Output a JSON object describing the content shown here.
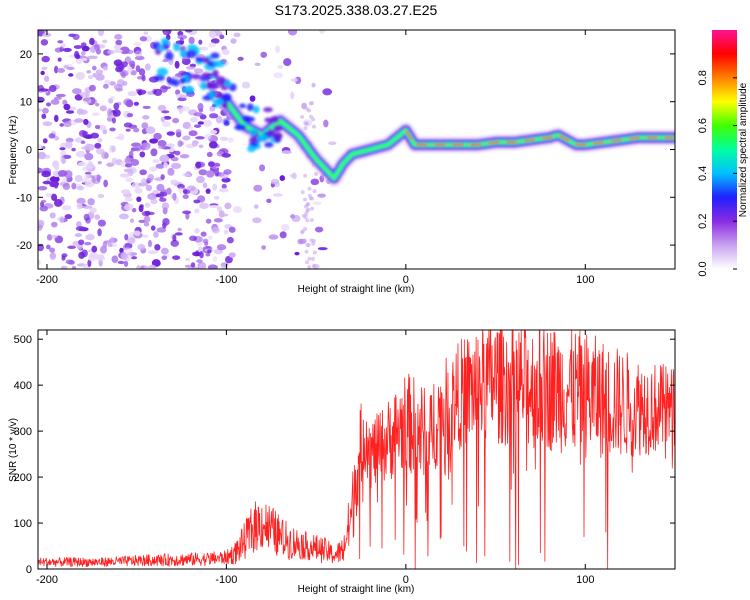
{
  "title": "S173.2025.338.03.27.E25",
  "chart_data": [
    {
      "type": "heatmap",
      "title": "S173.2025.338.03.27.E25",
      "xlabel": "Height of straight line (km)",
      "ylabel": "Frequency (Hz)",
      "xlim": [
        -205,
        150
      ],
      "ylim": [
        -25,
        25
      ],
      "xticks": [
        -200,
        -100,
        0,
        100
      ],
      "yticks": [
        -20,
        -10,
        0,
        10,
        20
      ],
      "colorbar": {
        "label": "Normalized spectral amplitude",
        "range": [
          0,
          1
        ],
        "ticks": [
          "0.0",
          "0.2",
          "0.4",
          "0.6",
          "0.8"
        ],
        "colors": [
          "#ffffff",
          "#c8a2f0",
          "#8a2be2",
          "#2020ff",
          "#00c0ff",
          "#00ffa0",
          "#40ff00",
          "#ffff00",
          "#ff8000",
          "#ff0000",
          "#ff1493"
        ]
      },
      "ridge": {
        "x": [
          -100,
          -90,
          -80,
          -70,
          -60,
          -50,
          -40,
          -35,
          -30,
          -20,
          -10,
          0,
          5,
          10,
          20,
          30,
          40,
          50,
          60,
          70,
          80,
          85,
          90,
          95,
          100,
          110,
          120,
          130,
          140,
          150
        ],
        "y": [
          10,
          5,
          3,
          6,
          3,
          -2,
          -6,
          -3,
          -1,
          0,
          1,
          4,
          1,
          1,
          1,
          1,
          1,
          1.5,
          1.5,
          2,
          2.5,
          3,
          2,
          1,
          1,
          1.5,
          2,
          2.5,
          2.5,
          2.5
        ]
      }
    },
    {
      "type": "line",
      "xlabel": "Height of straight line (km)",
      "ylabel": "SNR (10 * v/v)",
      "xlim": [
        -205,
        150
      ],
      "ylim": [
        0,
        520
      ],
      "xticks": [
        -200,
        -100,
        0,
        100
      ],
      "yticks": [
        0,
        100,
        200,
        300,
        400,
        500
      ],
      "color": "#ff2020",
      "x": [
        -205,
        -190,
        -170,
        -150,
        -130,
        -110,
        -100,
        -95,
        -90,
        -85,
        -80,
        -75,
        -70,
        -65,
        -60,
        -55,
        -50,
        -45,
        -40,
        -35,
        -30,
        -28,
        -25,
        -22,
        -20,
        -15,
        -10,
        -5,
        0,
        5,
        10,
        12,
        15,
        20,
        25,
        30,
        40,
        50,
        60,
        70,
        80,
        90,
        100,
        110,
        120,
        130,
        140,
        150
      ],
      "y": [
        15,
        15,
        15,
        18,
        20,
        22,
        25,
        35,
        60,
        90,
        100,
        85,
        70,
        60,
        55,
        50,
        45,
        40,
        30,
        40,
        120,
        200,
        270,
        300,
        250,
        260,
        280,
        300,
        320,
        310,
        290,
        200,
        320,
        340,
        360,
        380,
        400,
        410,
        405,
        400,
        395,
        390,
        380,
        370,
        360,
        355,
        350,
        350
      ],
      "amplitude": [
        10,
        10,
        10,
        12,
        14,
        15,
        15,
        25,
        40,
        55,
        60,
        55,
        45,
        40,
        35,
        30,
        30,
        28,
        20,
        30,
        80,
        100,
        90,
        90,
        80,
        80,
        90,
        100,
        110,
        110,
        120,
        130,
        110,
        110,
        110,
        120,
        130,
        140,
        140,
        140,
        140,
        140,
        140,
        130,
        120,
        110,
        100,
        90
      ]
    }
  ]
}
